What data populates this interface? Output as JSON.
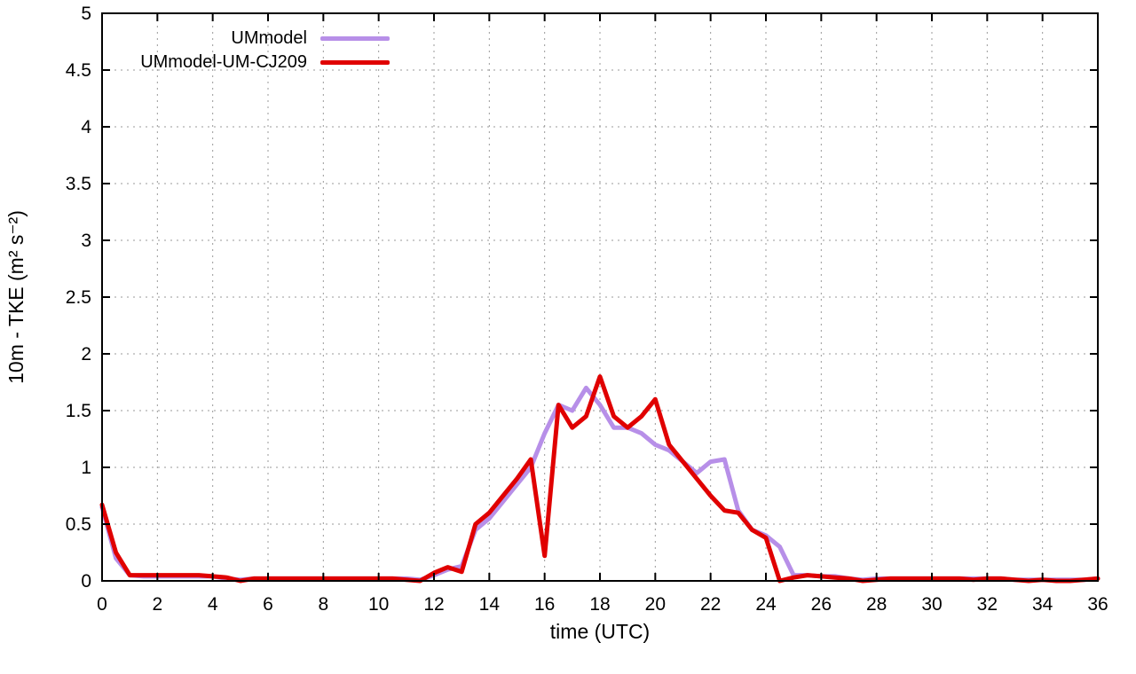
{
  "chart_data": {
    "type": "line",
    "title": "",
    "xlabel": "time (UTC)",
    "ylabel": "10m - TKE (m² s⁻²)",
    "xlim": [
      0,
      36
    ],
    "ylim": [
      0,
      5
    ],
    "xticks": [
      0,
      2,
      4,
      6,
      8,
      10,
      12,
      14,
      16,
      18,
      20,
      22,
      24,
      26,
      28,
      30,
      32,
      34,
      36
    ],
    "yticks": [
      0,
      0.5,
      1,
      1.5,
      2,
      2.5,
      3,
      3.5,
      4,
      4.5,
      5
    ],
    "grid": true,
    "legend_position": "top-left-inside",
    "x": [
      0,
      0.5,
      1,
      1.5,
      2,
      2.5,
      3,
      3.5,
      4,
      4.5,
      5,
      5.5,
      6,
      6.5,
      7,
      7.5,
      8,
      8.5,
      9,
      9.5,
      10,
      10.5,
      11,
      11.5,
      12,
      12.5,
      13,
      13.5,
      14,
      14.5,
      15,
      15.5,
      16,
      16.5,
      17,
      17.5,
      18,
      18.5,
      19,
      19.5,
      20,
      20.5,
      21,
      21.5,
      22,
      22.5,
      23,
      23.5,
      24,
      24.5,
      25,
      25.5,
      26,
      26.5,
      27,
      27.5,
      28,
      28.5,
      29,
      29.5,
      30,
      30.5,
      31,
      31.5,
      32,
      32.5,
      33,
      33.5,
      34,
      34.5,
      35,
      35.5,
      36
    ],
    "series": [
      {
        "id": "ummodel",
        "name": "UMmodel",
        "color": "#b78fe8",
        "values": [
          0.65,
          0.2,
          0.05,
          0.04,
          0.04,
          0.04,
          0.04,
          0.04,
          0.04,
          0.02,
          0.01,
          0.02,
          0.02,
          0.02,
          0.02,
          0.02,
          0.02,
          0.02,
          0.02,
          0.02,
          0.02,
          0.02,
          0.02,
          0.01,
          0.05,
          0.1,
          0.13,
          0.45,
          0.55,
          0.7,
          0.85,
          1.0,
          1.3,
          1.55,
          1.5,
          1.7,
          1.55,
          1.35,
          1.35,
          1.3,
          1.2,
          1.15,
          1.05,
          0.95,
          1.05,
          1.07,
          0.62,
          0.45,
          0.4,
          0.3,
          0.05,
          0.05,
          0.04,
          0.04,
          0.02,
          0.01,
          0.02,
          0.02,
          0.02,
          0.02,
          0.02,
          0.02,
          0.02,
          0.02,
          0.02,
          0.02,
          0.01,
          0.01,
          0.01,
          0.01,
          0.01,
          0.01,
          0.02
        ]
      },
      {
        "id": "ummodel-um-cj209",
        "name": "UMmodel-UM-CJ209",
        "color": "#e00000",
        "values": [
          0.67,
          0.25,
          0.05,
          0.05,
          0.05,
          0.05,
          0.05,
          0.05,
          0.04,
          0.03,
          0.0,
          0.02,
          0.02,
          0.02,
          0.02,
          0.02,
          0.02,
          0.02,
          0.02,
          0.02,
          0.02,
          0.02,
          0.01,
          0.0,
          0.07,
          0.12,
          0.08,
          0.5,
          0.6,
          0.75,
          0.9,
          1.07,
          0.22,
          1.55,
          1.35,
          1.45,
          1.8,
          1.45,
          1.35,
          1.45,
          1.6,
          1.2,
          1.05,
          0.9,
          0.75,
          0.62,
          0.6,
          0.45,
          0.38,
          0.0,
          0.03,
          0.05,
          0.04,
          0.03,
          0.02,
          0.0,
          0.01,
          0.02,
          0.02,
          0.02,
          0.02,
          0.02,
          0.02,
          0.01,
          0.02,
          0.02,
          0.01,
          0.0,
          0.01,
          0.0,
          0.0,
          0.01,
          0.02
        ]
      }
    ]
  }
}
